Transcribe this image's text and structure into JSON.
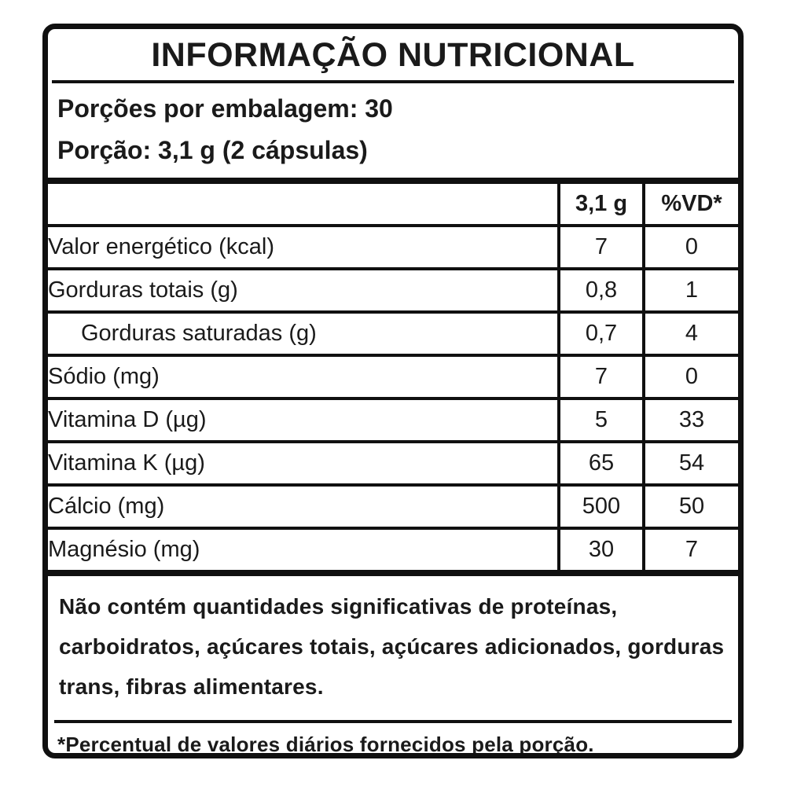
{
  "label": {
    "title": "INFORMAÇÃO NUTRICIONAL",
    "servings_per_package": "Porções por embalagem: 30",
    "serving_size": "Porção: 3,1 g (2 cápsulas)",
    "table": {
      "columns": [
        "",
        "3,1 g",
        "%VD*"
      ],
      "rows": [
        {
          "name": "Valor energético (kcal)",
          "amount": "7",
          "vd": "0",
          "indent": false
        },
        {
          "name": "Gorduras totais (g)",
          "amount": "0,8",
          "vd": "1",
          "indent": false
        },
        {
          "name": "Gorduras saturadas (g)",
          "amount": "0,7",
          "vd": "4",
          "indent": true
        },
        {
          "name": "Sódio (mg)",
          "amount": "7",
          "vd": "0",
          "indent": false
        },
        {
          "name": "Vitamina D (µg)",
          "amount": "5",
          "vd": "33",
          "indent": false
        },
        {
          "name": "Vitamina K (µg)",
          "amount": "65",
          "vd": "54",
          "indent": false
        },
        {
          "name": "Cálcio (mg)",
          "amount": "500",
          "vd": "50",
          "indent": false
        },
        {
          "name": "Magnésio (mg)",
          "amount": "30",
          "vd": "7",
          "indent": false
        }
      ]
    },
    "no_significant_amounts_note": "Não contém quantidades significativas de proteínas, carboidratos, açúcares totais, açúcares adicionados, gorduras trans, fibras alimentares.",
    "daily_value_footnote": "*Percentual de valores diários fornecidos pela porção.",
    "colors": {
      "border": "#101010",
      "text": "#1a1a1a",
      "background": "#ffffff"
    }
  }
}
